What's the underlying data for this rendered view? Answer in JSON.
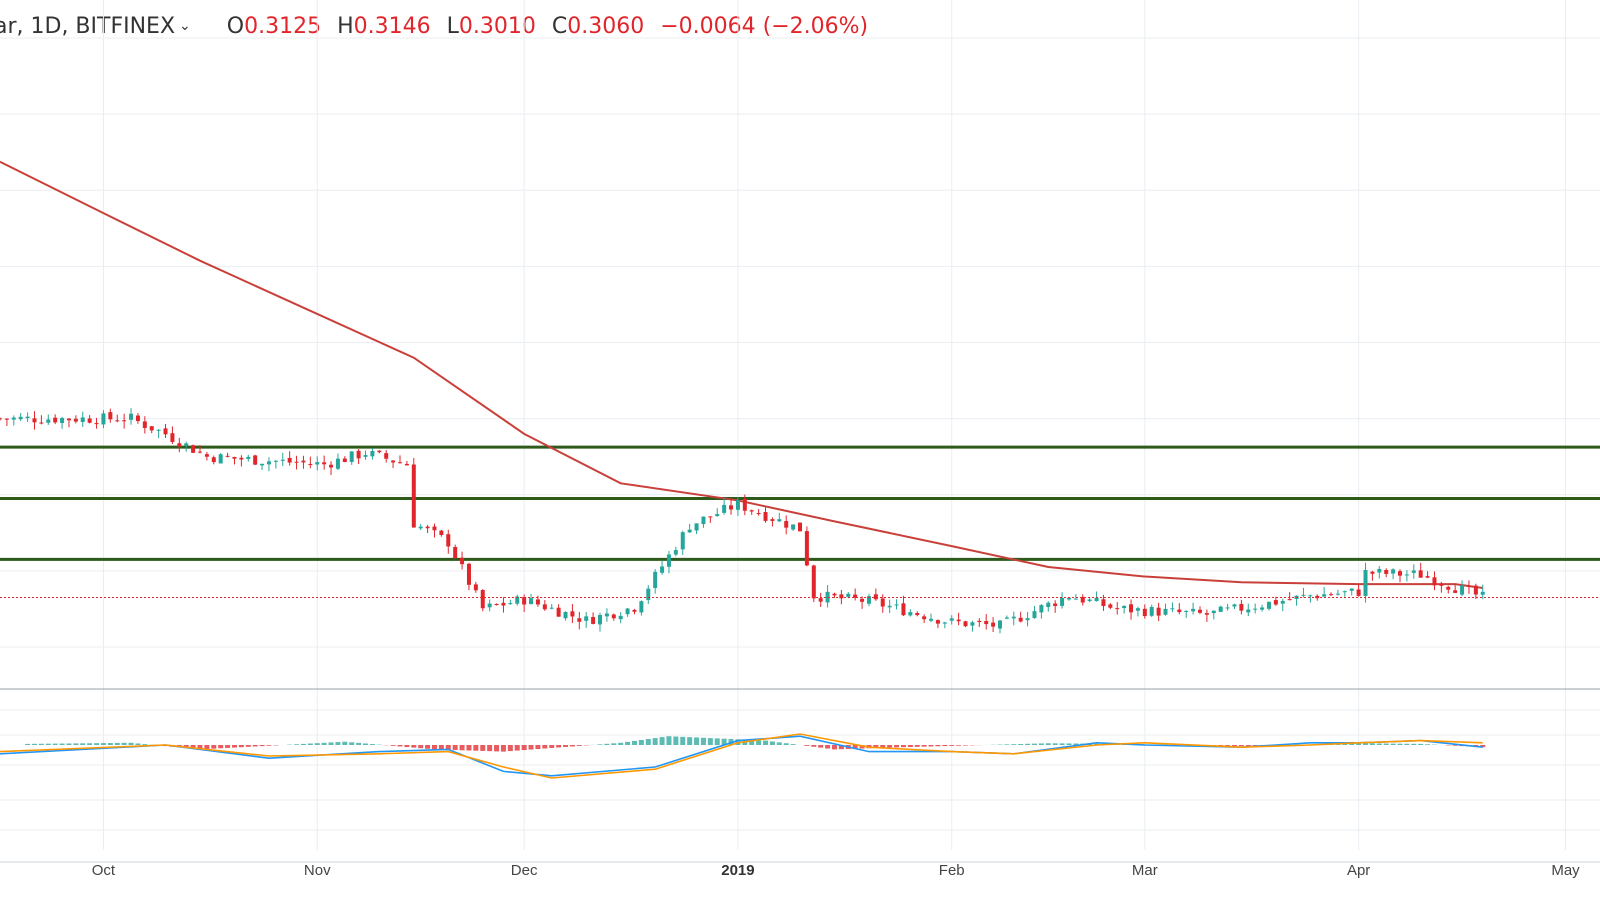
{
  "header": {
    "symbol": "ar, 1D, BITFINEX",
    "caret": "⌄",
    "open_label": "O",
    "open": "0.3125",
    "high_label": "H",
    "high": "0.3146",
    "low_label": "L",
    "low": "0.3010",
    "close_label": "C",
    "close": "0.3060",
    "change": "−0.0064 (−2.06%)"
  },
  "colors": {
    "up": "#26a69a",
    "down": "#e0252b",
    "ma": "#c9403a",
    "support_lines": "#2e5a1c",
    "macd": "#2196f3",
    "signal": "#ff9800",
    "grid": "#e9eef2"
  },
  "chart_data": [
    {
      "type": "candlestick",
      "timeframe": "1D",
      "exchange": "BITFINEX",
      "x_ticks": [
        "Oct",
        "Nov",
        "Dec",
        "2019",
        "Feb",
        "Mar",
        "Apr",
        "May"
      ],
      "x_range": [
        "2018-09-16",
        "2019-05-06"
      ],
      "y_range": [
        0.26,
        0.62
      ],
      "last_close": 0.306,
      "horizontal_levels": [
        0.385,
        0.358,
        0.326
      ],
      "moving_average": {
        "dates": [
          "2018-09-16",
          "2018-10-01",
          "2018-10-15",
          "2018-11-01",
          "2018-11-15",
          "2018-12-01",
          "2018-12-15",
          "2019-01-01",
          "2019-01-15",
          "2019-02-01",
          "2019-02-15",
          "2019-03-01",
          "2019-03-15",
          "2019-04-01",
          "2019-04-15",
          "2019-04-19"
        ],
        "values": [
          0.535,
          0.508,
          0.483,
          0.455,
          0.432,
          0.392,
          0.366,
          0.357,
          0.346,
          0.333,
          0.322,
          0.317,
          0.314,
          0.313,
          0.313,
          0.311
        ]
      },
      "candles": {
        "anchors": [
          "2018-09-16",
          "2018-10-05",
          "2018-10-10",
          "2018-10-16",
          "2018-11-02",
          "2018-11-08",
          "2018-11-14",
          "2018-11-15",
          "2018-11-20",
          "2018-11-25",
          "2018-12-01",
          "2018-12-10",
          "2018-12-17",
          "2018-12-25",
          "2019-01-01",
          "2019-01-10",
          "2019-01-12",
          "2019-01-20",
          "2019-02-01",
          "2019-02-08",
          "2019-02-18",
          "2019-02-25",
          "2019-03-10",
          "2019-03-25",
          "2019-04-01",
          "2019-04-02",
          "2019-04-10",
          "2019-04-19"
        ],
        "closes": [
          0.4,
          0.4,
          0.392,
          0.38,
          0.376,
          0.382,
          0.376,
          0.345,
          0.335,
          0.3,
          0.305,
          0.294,
          0.301,
          0.344,
          0.355,
          0.342,
          0.307,
          0.304,
          0.293,
          0.291,
          0.307,
          0.3,
          0.297,
          0.307,
          0.309,
          0.319,
          0.318,
          0.306
        ]
      }
    },
    {
      "type": "macd",
      "series": [
        {
          "name": "",
          "values": [
            -0.004,
            0.0,
            -0.006,
            -0.003,
            -0.002,
            -0.012,
            -0.014,
            -0.01,
            0.002,
            0.004,
            -0.003,
            -0.003,
            -0.004,
            0.001,
            0.0,
            -0.001,
            0.001,
            0.001,
            0.002,
            -0.001
          ]
        },
        {
          "name": "",
          "values": [
            -0.003,
            0.0,
            -0.005,
            -0.004,
            -0.003,
            -0.01,
            -0.015,
            -0.011,
            0.001,
            0.005,
            -0.001,
            -0.003,
            -0.004,
            0.0,
            0.001,
            -0.001,
            0.0,
            0.001,
            0.002,
            0.001
          ]
        }
      ],
      "dates": [
        "2018-09-16",
        "2018-10-10",
        "2018-10-25",
        "2018-11-10",
        "2018-11-20",
        "2018-11-28",
        "2018-12-05",
        "2018-12-20",
        "2019-01-01",
        "2019-01-10",
        "2019-01-20",
        "2019-02-01",
        "2019-02-10",
        "2019-02-22",
        "2019-03-01",
        "2019-03-15",
        "2019-03-25",
        "2019-04-01",
        "2019-04-10",
        "2019-04-19"
      ],
      "histogram": {
        "dates": [
          "2018-09-20",
          "2018-10-05",
          "2018-10-15",
          "2018-11-05",
          "2018-11-18",
          "2018-11-28",
          "2018-12-15",
          "2018-12-22",
          "2019-01-05",
          "2019-01-15",
          "2019-01-25",
          "2019-02-15",
          "2019-02-25",
          "2019-03-15",
          "2019-04-01",
          "2019-04-10",
          "2019-04-19"
        ],
        "values": [
          0.0005,
          0.001,
          -0.002,
          0.0015,
          -0.002,
          -0.003,
          0.001,
          0.004,
          0.002,
          -0.002,
          -0.001,
          0.0008,
          0.0005,
          -0.0005,
          0.0008,
          0.0005,
          -0.001
        ]
      }
    }
  ]
}
